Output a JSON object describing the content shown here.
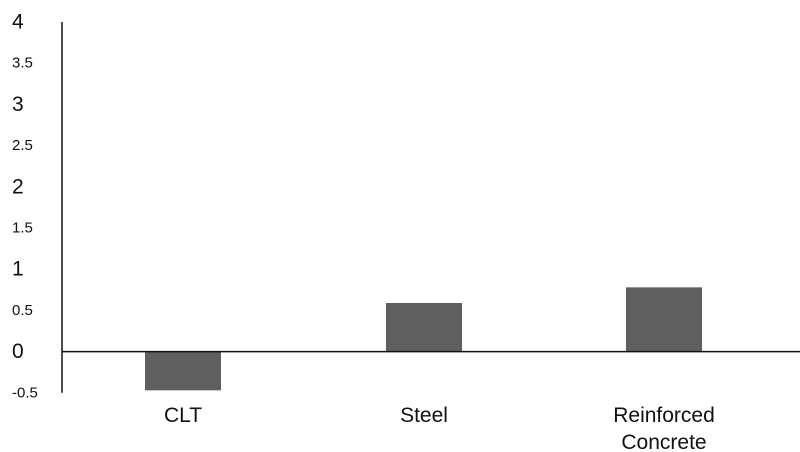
{
  "chart_data": {
    "type": "bar",
    "title": "",
    "xlabel": "",
    "ylabel": "",
    "categories": [
      "CLT",
      "Steel",
      "Reinforced Concrete"
    ],
    "category_lines": [
      [
        "CLT"
      ],
      [
        "Steel"
      ],
      [
        "Reinforced",
        "Concrete"
      ]
    ],
    "values": [
      -0.47,
      0.59,
      0.78
    ],
    "ylim": [
      -0.5,
      4
    ],
    "yticks": [
      {
        "value": 4,
        "label": "4"
      },
      {
        "value": 3.5,
        "label": "3.5"
      },
      {
        "value": 3,
        "label": "3"
      },
      {
        "value": 2.5,
        "label": "2.5"
      },
      {
        "value": 2,
        "label": "2"
      },
      {
        "value": 1.5,
        "label": "1.5"
      },
      {
        "value": 1,
        "label": "1"
      },
      {
        "value": 0.5,
        "label": "0.5"
      },
      {
        "value": 0,
        "label": "0"
      },
      {
        "value": -0.5,
        "label": "-0.5"
      }
    ],
    "grid": false,
    "legend": "none",
    "bar_color": "#5f5f5f",
    "axis_color": "#111111"
  }
}
